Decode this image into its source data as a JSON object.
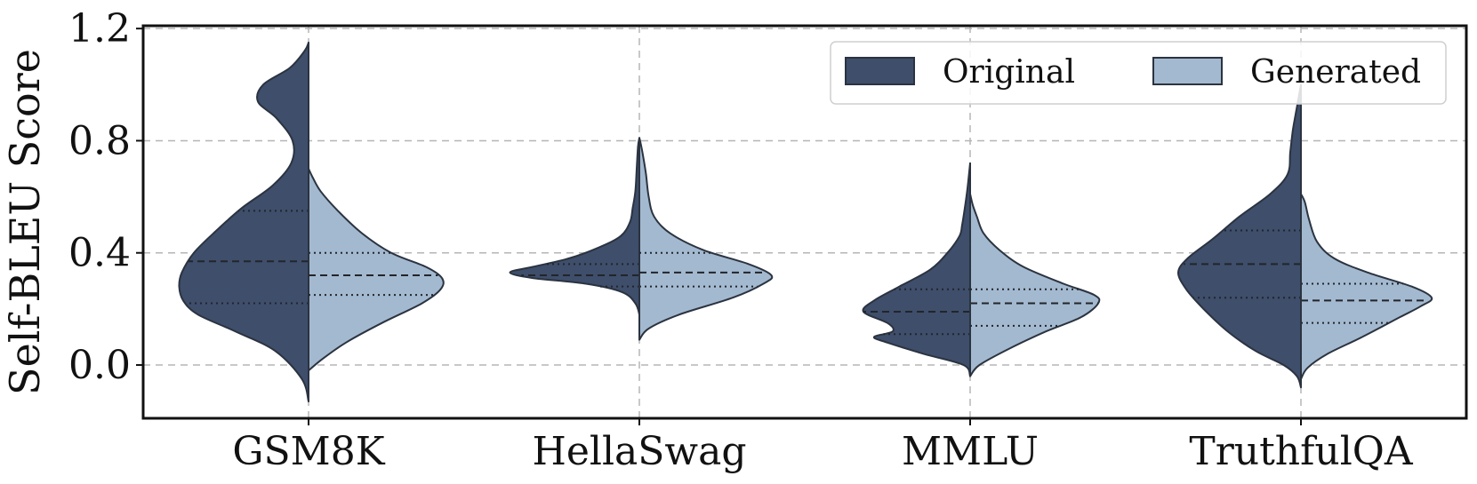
{
  "chart_data": {
    "type": "violin",
    "split": true,
    "categories": [
      "GSM8K",
      "HellaSwag",
      "MMLU",
      "TruthfulQA"
    ],
    "ylabel": "Self-BLEU Score",
    "xlabel": "",
    "ylim": [
      -0.19,
      1.21
    ],
    "yticks": [
      "0.0",
      "0.4",
      "0.8",
      "1.2"
    ],
    "grid": true,
    "legend_position": "top-right",
    "series": [
      {
        "name": "Original",
        "color": "#3e4e6b",
        "side": "left",
        "violins": [
          {
            "profile": [
              [
                -0.13,
                0.0
              ],
              [
                -0.05,
                0.05
              ],
              [
                0.05,
                0.25
              ],
              [
                0.12,
                0.55
              ],
              [
                0.18,
                0.83
              ],
              [
                0.23,
                0.94
              ],
              [
                0.28,
                0.97
              ],
              [
                0.33,
                0.95
              ],
              [
                0.4,
                0.86
              ],
              [
                0.48,
                0.69
              ],
              [
                0.56,
                0.5
              ],
              [
                0.64,
                0.27
              ],
              [
                0.72,
                0.13
              ],
              [
                0.8,
                0.12
              ],
              [
                0.88,
                0.24
              ],
              [
                0.94,
                0.38
              ],
              [
                1.0,
                0.34
              ],
              [
                1.06,
                0.14
              ],
              [
                1.12,
                0.03
              ],
              [
                1.15,
                0.0
              ]
            ],
            "q1": 0.22,
            "median": 0.37,
            "q3": 0.55
          },
          {
            "profile": [
              [
                0.18,
                0.0
              ],
              [
                0.22,
                0.03
              ],
              [
                0.26,
                0.13
              ],
              [
                0.29,
                0.4
              ],
              [
                0.31,
                0.8
              ],
              [
                0.33,
                0.97
              ],
              [
                0.35,
                0.8
              ],
              [
                0.38,
                0.53
              ],
              [
                0.42,
                0.3
              ],
              [
                0.46,
                0.14
              ],
              [
                0.51,
                0.07
              ],
              [
                0.56,
                0.05
              ],
              [
                0.62,
                0.03
              ],
              [
                0.7,
                0.02
              ],
              [
                0.78,
                0.01
              ],
              [
                0.81,
                0.0
              ]
            ],
            "q1": 0.28,
            "median": 0.32,
            "q3": 0.36
          },
          {
            "profile": [
              [
                -0.04,
                0.0
              ],
              [
                0.0,
                0.05
              ],
              [
                0.04,
                0.35
              ],
              [
                0.08,
                0.62
              ],
              [
                0.1,
                0.72
              ],
              [
                0.12,
                0.58
              ],
              [
                0.15,
                0.62
              ],
              [
                0.19,
                0.8
              ],
              [
                0.23,
                0.72
              ],
              [
                0.28,
                0.53
              ],
              [
                0.34,
                0.3
              ],
              [
                0.4,
                0.17
              ],
              [
                0.46,
                0.08
              ],
              [
                0.5,
                0.06
              ],
              [
                0.56,
                0.04
              ],
              [
                0.63,
                0.02
              ],
              [
                0.72,
                0.0
              ]
            ],
            "q1": 0.11,
            "median": 0.19,
            "q3": 0.27
          },
          {
            "profile": [
              [
                -0.08,
                0.0
              ],
              [
                -0.04,
                0.03
              ],
              [
                0.0,
                0.13
              ],
              [
                0.05,
                0.34
              ],
              [
                0.12,
                0.55
              ],
              [
                0.2,
                0.73
              ],
              [
                0.27,
                0.86
              ],
              [
                0.33,
                0.92
              ],
              [
                0.38,
                0.85
              ],
              [
                0.45,
                0.66
              ],
              [
                0.53,
                0.46
              ],
              [
                0.61,
                0.23
              ],
              [
                0.68,
                0.1
              ],
              [
                0.76,
                0.08
              ],
              [
                0.84,
                0.06
              ],
              [
                0.92,
                0.03
              ],
              [
                1.0,
                0.0
              ]
            ],
            "q1": 0.24,
            "median": 0.36,
            "q3": 0.48
          }
        ]
      },
      {
        "name": "Generated",
        "color": "#a3b9cf",
        "side": "right",
        "violins": [
          {
            "profile": [
              [
                -0.02,
                0.0
              ],
              [
                0.02,
                0.1
              ],
              [
                0.08,
                0.28
              ],
              [
                0.15,
                0.55
              ],
              [
                0.22,
                0.85
              ],
              [
                0.27,
                0.99
              ],
              [
                0.31,
                1.0
              ],
              [
                0.35,
                0.88
              ],
              [
                0.4,
                0.62
              ],
              [
                0.47,
                0.4
              ],
              [
                0.55,
                0.22
              ],
              [
                0.62,
                0.09
              ],
              [
                0.67,
                0.03
              ],
              [
                0.7,
                0.0
              ]
            ],
            "q1": 0.25,
            "median": 0.32,
            "q3": 0.4
          },
          {
            "profile": [
              [
                0.09,
                0.0
              ],
              [
                0.13,
                0.07
              ],
              [
                0.18,
                0.3
              ],
              [
                0.24,
                0.7
              ],
              [
                0.29,
                0.93
              ],
              [
                0.32,
                0.99
              ],
              [
                0.36,
                0.82
              ],
              [
                0.41,
                0.48
              ],
              [
                0.47,
                0.23
              ],
              [
                0.53,
                0.11
              ],
              [
                0.6,
                0.07
              ],
              [
                0.68,
                0.05
              ],
              [
                0.74,
                0.03
              ],
              [
                0.79,
                0.01
              ],
              [
                0.81,
                0.0
              ]
            ],
            "q1": 0.28,
            "median": 0.33,
            "q3": 0.4
          },
          {
            "profile": [
              [
                -0.04,
                0.0
              ],
              [
                0.0,
                0.07
              ],
              [
                0.06,
                0.3
              ],
              [
                0.12,
                0.57
              ],
              [
                0.17,
                0.83
              ],
              [
                0.22,
                0.96
              ],
              [
                0.25,
                0.93
              ],
              [
                0.29,
                0.7
              ],
              [
                0.35,
                0.4
              ],
              [
                0.41,
                0.22
              ],
              [
                0.47,
                0.1
              ],
              [
                0.53,
                0.05
              ],
              [
                0.57,
                0.02
              ],
              [
                0.61,
                0.0
              ]
            ],
            "q1": 0.14,
            "median": 0.22,
            "q3": 0.27
          },
          {
            "profile": [
              [
                -0.05,
                0.0
              ],
              [
                -0.01,
                0.05
              ],
              [
                0.04,
                0.2
              ],
              [
                0.1,
                0.46
              ],
              [
                0.17,
                0.74
              ],
              [
                0.21,
                0.9
              ],
              [
                0.24,
                0.98
              ],
              [
                0.28,
                0.83
              ],
              [
                0.33,
                0.5
              ],
              [
                0.38,
                0.25
              ],
              [
                0.44,
                0.12
              ],
              [
                0.52,
                0.06
              ],
              [
                0.58,
                0.03
              ],
              [
                0.61,
                0.0
              ]
            ],
            "q1": 0.15,
            "median": 0.23,
            "q3": 0.29
          }
        ]
      }
    ]
  }
}
